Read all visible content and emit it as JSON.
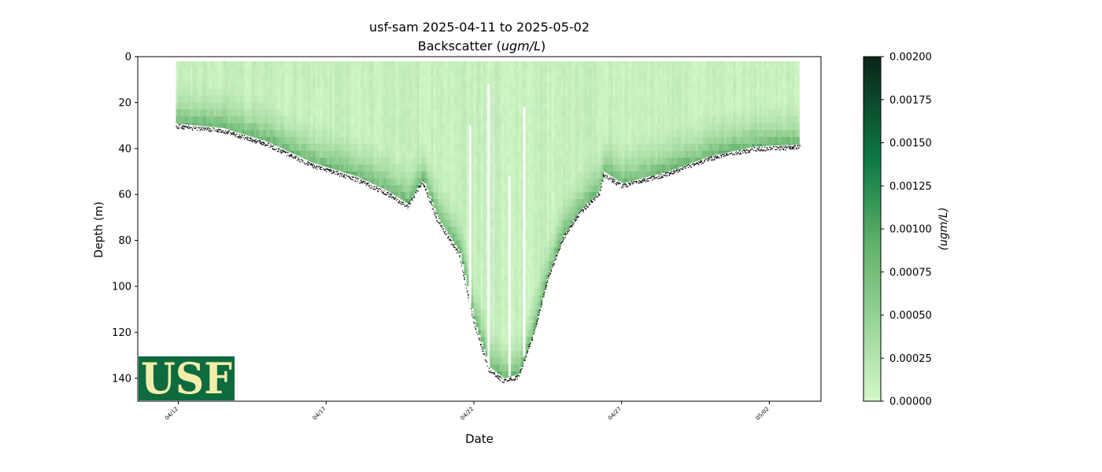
{
  "colors": {
    "cmap_low": "#d4f7c9",
    "cmap_mid": "#62b26a",
    "cmap_high": "#0c7a45",
    "cmap_max": "#0c2417",
    "bottom_dots": "#000000",
    "logo_bg": "#0d6b3f",
    "logo_text": "#f3ecaa"
  },
  "logo": {
    "text": "USF"
  },
  "chart_data": {
    "type": "heatmap",
    "title": "usf-sam 2025-04-11 to 2025-05-02",
    "subtitle_prefix": "Backscatter (",
    "subtitle_unit": "ugm/L",
    "subtitle_suffix": ")",
    "xlabel": "Date",
    "ylabel": "Depth (m)",
    "colorbar_label": "(ugm/L)",
    "x_range": [
      "2025-04-10T15:00",
      "2025-05-03T18:00"
    ],
    "ylim": [
      150,
      0
    ],
    "y_ticks": [
      0,
      20,
      40,
      60,
      80,
      100,
      120,
      140
    ],
    "x_ticks": [
      {
        "date": "2025-04-12",
        "label": "04/12"
      },
      {
        "date": "2025-04-17",
        "label": "04/17"
      },
      {
        "date": "2025-04-22",
        "label": "04/22"
      },
      {
        "date": "2025-04-27",
        "label": "04/27"
      },
      {
        "date": "2025-05-02",
        "label": "05/02"
      }
    ],
    "color_range": [
      0,
      0.002
    ],
    "colorbar_ticks": [
      "0.00000",
      "0.00025",
      "0.00050",
      "0.00075",
      "0.00100",
      "0.00125",
      "0.00150",
      "0.00175",
      "0.00200"
    ],
    "data_start": "2025-04-11T22:00",
    "data_end": "2025-05-03T01:00",
    "surface_depth_m": 2,
    "bottom_profile": [
      {
        "date": "2025-04-11T22:00",
        "depth": 29
      },
      {
        "date": "2025-04-13T12:00",
        "depth": 31
      },
      {
        "date": "2025-04-15T00:00",
        "depth": 37
      },
      {
        "date": "2025-04-16T12:00",
        "depth": 46
      },
      {
        "date": "2025-04-18T00:00",
        "depth": 52
      },
      {
        "date": "2025-04-19T00:00",
        "depth": 58
      },
      {
        "date": "2025-04-19T18:00",
        "depth": 64
      },
      {
        "date": "2025-04-20T06:00",
        "depth": 53
      },
      {
        "date": "2025-04-20T18:00",
        "depth": 70
      },
      {
        "date": "2025-04-21T12:00",
        "depth": 85
      },
      {
        "date": "2025-04-22T00:00",
        "depth": 115
      },
      {
        "date": "2025-04-22T12:00",
        "depth": 135
      },
      {
        "date": "2025-04-23T00:00",
        "depth": 140
      },
      {
        "date": "2025-04-23T12:00",
        "depth": 138
      },
      {
        "date": "2025-04-24T00:00",
        "depth": 120
      },
      {
        "date": "2025-04-24T12:00",
        "depth": 95
      },
      {
        "date": "2025-04-25T00:00",
        "depth": 78
      },
      {
        "date": "2025-04-25T12:00",
        "depth": 68
      },
      {
        "date": "2025-04-26T06:00",
        "depth": 58
      },
      {
        "date": "2025-04-26T09:00",
        "depth": 50
      },
      {
        "date": "2025-04-27T00:00",
        "depth": 55
      },
      {
        "date": "2025-04-28T12:00",
        "depth": 50
      },
      {
        "date": "2025-04-30T00:00",
        "depth": 43
      },
      {
        "date": "2025-05-01T12:00",
        "depth": 39
      },
      {
        "date": "2025-05-03T01:00",
        "depth": 38
      }
    ],
    "high_band_thickness_m": 9,
    "surface_value": 0.0001,
    "deep_value": 0.0007,
    "peak_value": 0.0011,
    "gap_dates": [
      "2025-04-21T21:00",
      "2025-04-22T12:00",
      "2025-04-23T05:00",
      "2025-04-23T17:00"
    ]
  }
}
